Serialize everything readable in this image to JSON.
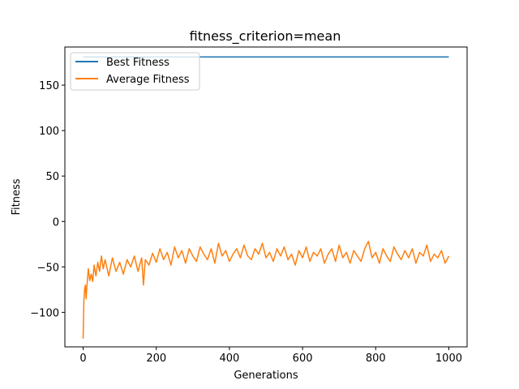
{
  "chart_data": {
    "type": "line",
    "title": "fitness_criterion=mean",
    "xlabel": "Generations",
    "ylabel": "Fitness",
    "xlim": [
      -50,
      1050
    ],
    "ylim": [
      -138,
      192
    ],
    "xticks": [
      0,
      200,
      400,
      600,
      800,
      1000
    ],
    "yticks": [
      -100,
      -50,
      0,
      50,
      100,
      150
    ],
    "grid": false,
    "legend_position": "upper-left",
    "series": [
      {
        "name": "Best Fitness",
        "color": "#1f77b4",
        "x": [
          0,
          1000
        ],
        "y": [
          181,
          181
        ]
      },
      {
        "name": "Average Fitness",
        "color": "#ff7f0e",
        "x": [
          0,
          2,
          4,
          6,
          8,
          10,
          14,
          18,
          22,
          26,
          30,
          35,
          40,
          45,
          50,
          55,
          60,
          70,
          80,
          90,
          100,
          110,
          120,
          130,
          140,
          150,
          160,
          165,
          170,
          180,
          190,
          200,
          210,
          220,
          230,
          240,
          250,
          260,
          270,
          280,
          290,
          300,
          310,
          320,
          330,
          340,
          350,
          360,
          370,
          380,
          390,
          400,
          410,
          420,
          430,
          440,
          450,
          460,
          470,
          480,
          490,
          500,
          510,
          520,
          530,
          540,
          550,
          560,
          570,
          580,
          590,
          600,
          610,
          620,
          630,
          640,
          650,
          660,
          670,
          680,
          690,
          700,
          710,
          720,
          730,
          740,
          750,
          760,
          770,
          780,
          790,
          800,
          810,
          820,
          830,
          840,
          850,
          860,
          870,
          880,
          890,
          900,
          910,
          920,
          930,
          940,
          950,
          960,
          970,
          980,
          990,
          1000
        ],
        "y": [
          -129,
          -88,
          -75,
          -70,
          -85,
          -72,
          -52,
          -65,
          -58,
          -66,
          -48,
          -60,
          -45,
          -55,
          -38,
          -52,
          -42,
          -60,
          -40,
          -55,
          -45,
          -58,
          -42,
          -50,
          -38,
          -55,
          -40,
          -70,
          -42,
          -48,
          -35,
          -45,
          -30,
          -42,
          -34,
          -48,
          -28,
          -40,
          -32,
          -46,
          -30,
          -38,
          -44,
          -28,
          -36,
          -42,
          -30,
          -46,
          -24,
          -38,
          -32,
          -44,
          -36,
          -30,
          -40,
          -26,
          -38,
          -42,
          -30,
          -36,
          -24,
          -40,
          -34,
          -44,
          -30,
          -38,
          -28,
          -42,
          -36,
          -48,
          -32,
          -40,
          -28,
          -44,
          -34,
          -38,
          -30,
          -46,
          -36,
          -30,
          -44,
          -26,
          -40,
          -34,
          -46,
          -32,
          -38,
          -44,
          -30,
          -22,
          -40,
          -34,
          -46,
          -30,
          -38,
          -44,
          -28,
          -36,
          -42,
          -32,
          -40,
          -30,
          -46,
          -34,
          -38,
          -26,
          -44,
          -36,
          -40,
          -32,
          -46,
          -38
        ]
      }
    ]
  }
}
